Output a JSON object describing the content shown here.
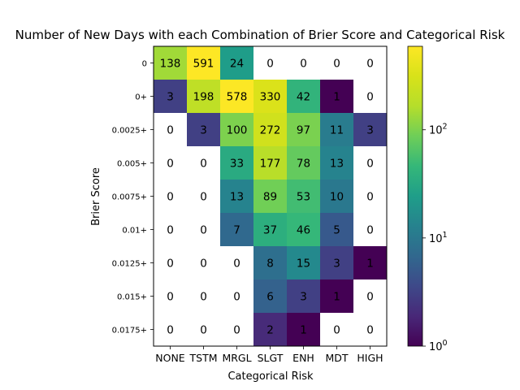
{
  "chart_data": {
    "type": "heatmap",
    "title": "Number of New Days with each Combination of Brier Score and Categorical Risk",
    "xlabel": "Categorical Risk",
    "ylabel": "Brier Score",
    "x_categories": [
      "NONE",
      "TSTM",
      "MRGL",
      "SLGT",
      "ENH",
      "MDT",
      "HIGH"
    ],
    "y_categories": [
      "0",
      "0+",
      "0.0025+",
      "0.005+",
      "0.0075+",
      "0.01+",
      "0.0125+",
      "0.015+",
      "0.0175+"
    ],
    "values": [
      [
        138,
        591,
        24,
        0,
        0,
        0,
        0
      ],
      [
        3,
        198,
        578,
        330,
        42,
        1,
        0
      ],
      [
        0,
        3,
        100,
        272,
        97,
        11,
        3
      ],
      [
        0,
        0,
        33,
        177,
        78,
        13,
        0
      ],
      [
        0,
        0,
        13,
        89,
        53,
        10,
        0
      ],
      [
        0,
        0,
        7,
        37,
        46,
        5,
        0
      ],
      [
        0,
        0,
        0,
        8,
        15,
        3,
        1
      ],
      [
        0,
        0,
        0,
        6,
        3,
        1,
        0
      ],
      [
        0,
        0,
        0,
        2,
        1,
        0,
        0
      ]
    ],
    "color_scale": "log",
    "colormap": "viridis",
    "colorbar": {
      "min": 1,
      "max": 591,
      "ticks": [
        {
          "value": 1,
          "base": "10",
          "exp": "0"
        },
        {
          "value": 10,
          "base": "10",
          "exp": "1"
        },
        {
          "value": 100,
          "base": "10",
          "exp": "2"
        }
      ]
    },
    "zero_cells_color": "#ffffff",
    "grid": false
  }
}
